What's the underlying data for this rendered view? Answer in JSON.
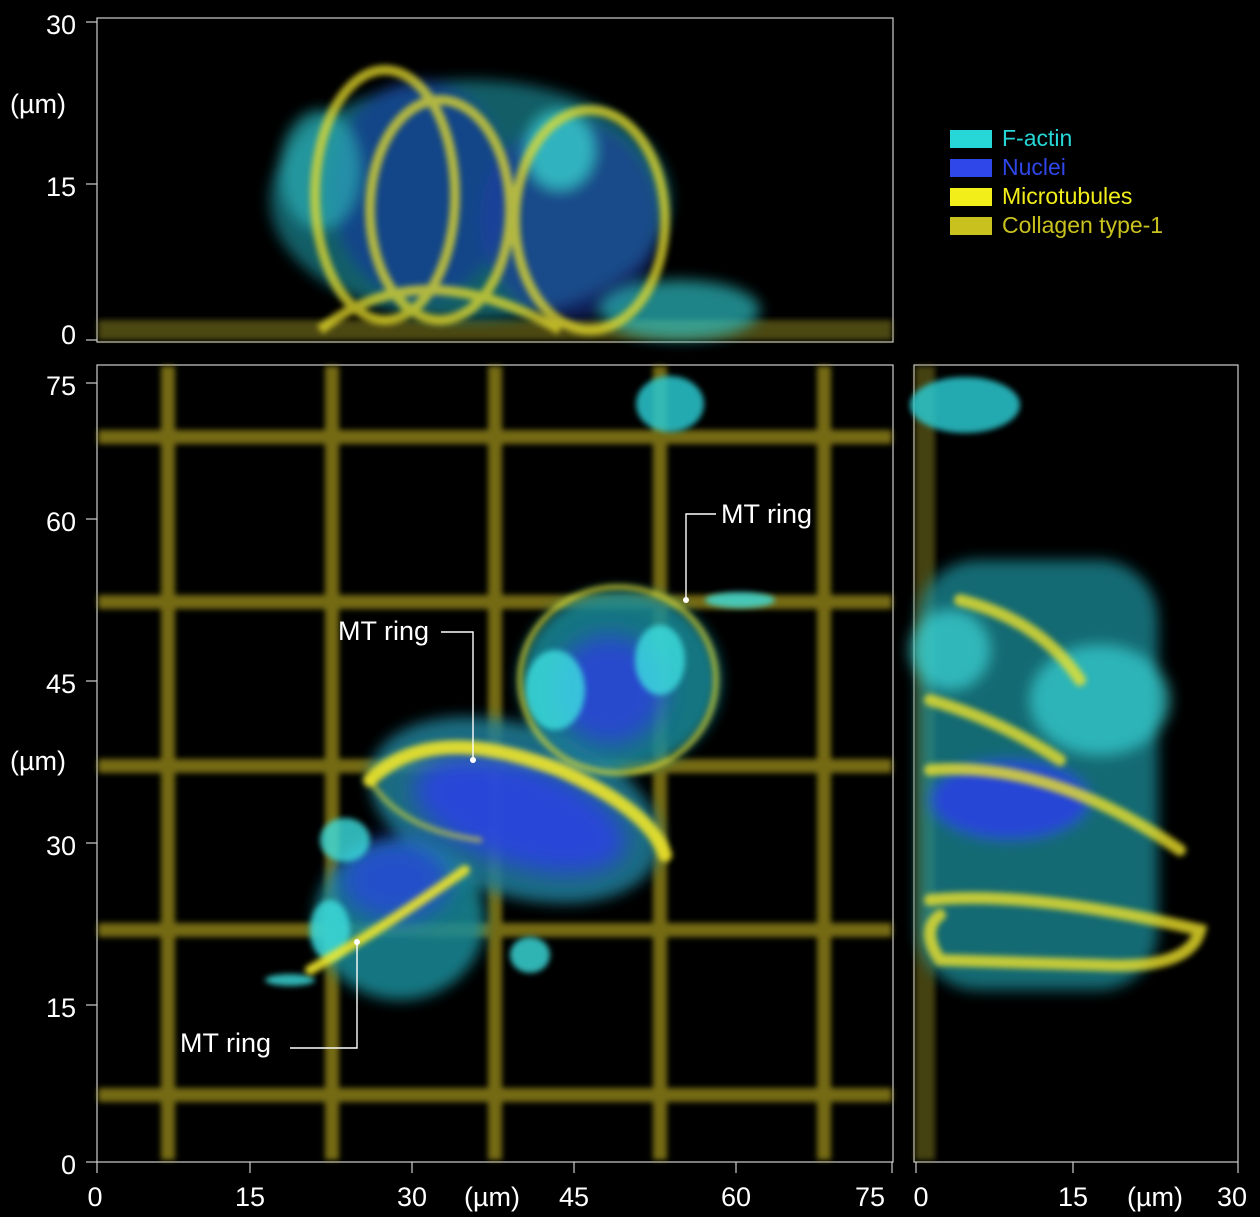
{
  "colors": {
    "background": "#000000",
    "axis": "#cfcfcf",
    "f_actin": "#2ee6e6",
    "nuclei": "#2a4df0",
    "microtubules": "#f2ee1a",
    "collagen": "#cfc92a",
    "grid": "#9a8f1c"
  },
  "legend": [
    {
      "label": "F-actin",
      "color": "#27d6d6"
    },
    {
      "label": "Nuclei",
      "color": "#2f46e8"
    },
    {
      "label": "Microtubules",
      "color": "#f2ee1a"
    },
    {
      "label": "Collagen type-1",
      "color": "#c9c21e"
    }
  ],
  "top_view": {
    "y_ticks": [
      "30",
      "15",
      "0"
    ],
    "y_unit": "(µm)"
  },
  "main_view": {
    "y_ticks": [
      "75",
      "60",
      "45",
      "30",
      "15",
      "0"
    ],
    "y_unit": "(µm)",
    "x_ticks": [
      "0",
      "15",
      "30",
      "45",
      "60",
      "75"
    ],
    "x_unit": "(µm)",
    "annotations": [
      "MT ring",
      "MT ring",
      "MT ring"
    ]
  },
  "side_view": {
    "x_ticks": [
      "0",
      "15",
      "30"
    ],
    "x_unit": "(µm)"
  }
}
